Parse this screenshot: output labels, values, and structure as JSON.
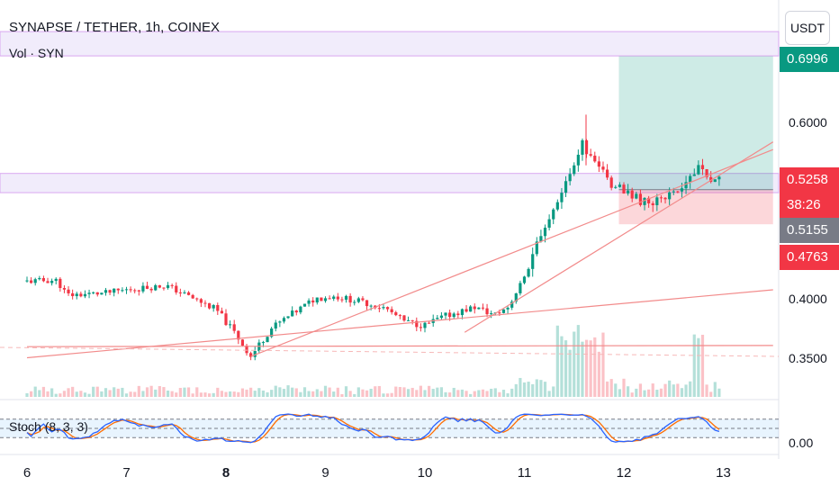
{
  "header": {
    "title": "SYNAPSE / TETHER, 1h, COINEX",
    "volume_label": "Vol · SYN"
  },
  "currency_button": "USDT",
  "stoch_label": "Stoch (8, 3, 3)",
  "stoch_axis_label": "0.00",
  "price_tags": {
    "target": {
      "value": "0.6996",
      "color": "#089981"
    },
    "last": {
      "value": "0.5258",
      "color": "#f23645"
    },
    "countdown": {
      "value": "38:26",
      "color": "#f23645"
    },
    "entry": {
      "value": "0.5155",
      "color": "#787b86"
    },
    "stop": {
      "value": "0.4763",
      "color": "#f23645"
    }
  },
  "chart_data": {
    "type": "candlestick",
    "title": "SYNAPSE / TETHER, 1h, COINEX",
    "y_axis": {
      "ticks": [
        "0.6000",
        "0.4000",
        "0.3500"
      ],
      "scale": "log"
    },
    "x_axis": {
      "ticks": [
        "6",
        "7",
        "8",
        "9",
        "10",
        "11",
        "12",
        "13"
      ],
      "bold_tick": "8"
    },
    "price_path": [
      [
        6.0,
        0.418
      ],
      [
        6.3,
        0.419
      ],
      [
        6.4,
        0.405
      ],
      [
        6.8,
        0.407
      ],
      [
        7.0,
        0.41
      ],
      [
        7.4,
        0.414
      ],
      [
        7.6,
        0.405
      ],
      [
        7.9,
        0.392
      ],
      [
        8.1,
        0.37
      ],
      [
        8.25,
        0.352
      ],
      [
        8.45,
        0.375
      ],
      [
        8.7,
        0.39
      ],
      [
        8.9,
        0.402
      ],
      [
        9.1,
        0.404
      ],
      [
        9.4,
        0.398
      ],
      [
        9.6,
        0.393
      ],
      [
        9.8,
        0.381
      ],
      [
        10.0,
        0.378
      ],
      [
        10.2,
        0.386
      ],
      [
        10.5,
        0.394
      ],
      [
        10.7,
        0.387
      ],
      [
        10.85,
        0.395
      ],
      [
        11.0,
        0.425
      ],
      [
        11.2,
        0.47
      ],
      [
        11.45,
        0.53
      ],
      [
        11.58,
        0.575
      ],
      [
        11.7,
        0.548
      ],
      [
        11.85,
        0.525
      ],
      [
        12.0,
        0.512
      ],
      [
        12.25,
        0.5
      ],
      [
        12.35,
        0.507
      ],
      [
        12.5,
        0.512
      ],
      [
        12.65,
        0.53
      ],
      [
        12.75,
        0.545
      ],
      [
        12.82,
        0.528
      ],
      [
        12.95,
        0.525
      ]
    ],
    "horizontal_zones": [
      [
        0.512,
        0.535
      ],
      [
        0.7,
        0.74
      ]
    ],
    "long_position": {
      "x_start": 11.95,
      "x_end": 13.5,
      "entry": 0.5155,
      "target": 0.6996,
      "stop": 0.4763
    },
    "trendlines": [
      {
        "from": [
          6.0,
          0.351
        ],
        "to": [
          13.5,
          0.41
        ]
      },
      {
        "from": [
          8.25,
          0.352
        ],
        "to": [
          13.5,
          0.565
        ]
      },
      {
        "from": [
          10.4,
          0.372
        ],
        "to": [
          13.5,
          0.575
        ]
      },
      {
        "from": [
          6.0,
          0.36
        ],
        "to": [
          13.5,
          0.361
        ]
      }
    ],
    "indicators": [
      {
        "name": "Vol · SYN",
        "type": "volume"
      },
      {
        "name": "Stoch (8, 3, 3)",
        "type": "oscillator",
        "bands": [
          20,
          50,
          80
        ]
      }
    ],
    "colors": {
      "up": "#089981",
      "down": "#f23645",
      "stoch_k": "#2962ff",
      "stoch_d": "#ff6d00"
    }
  }
}
